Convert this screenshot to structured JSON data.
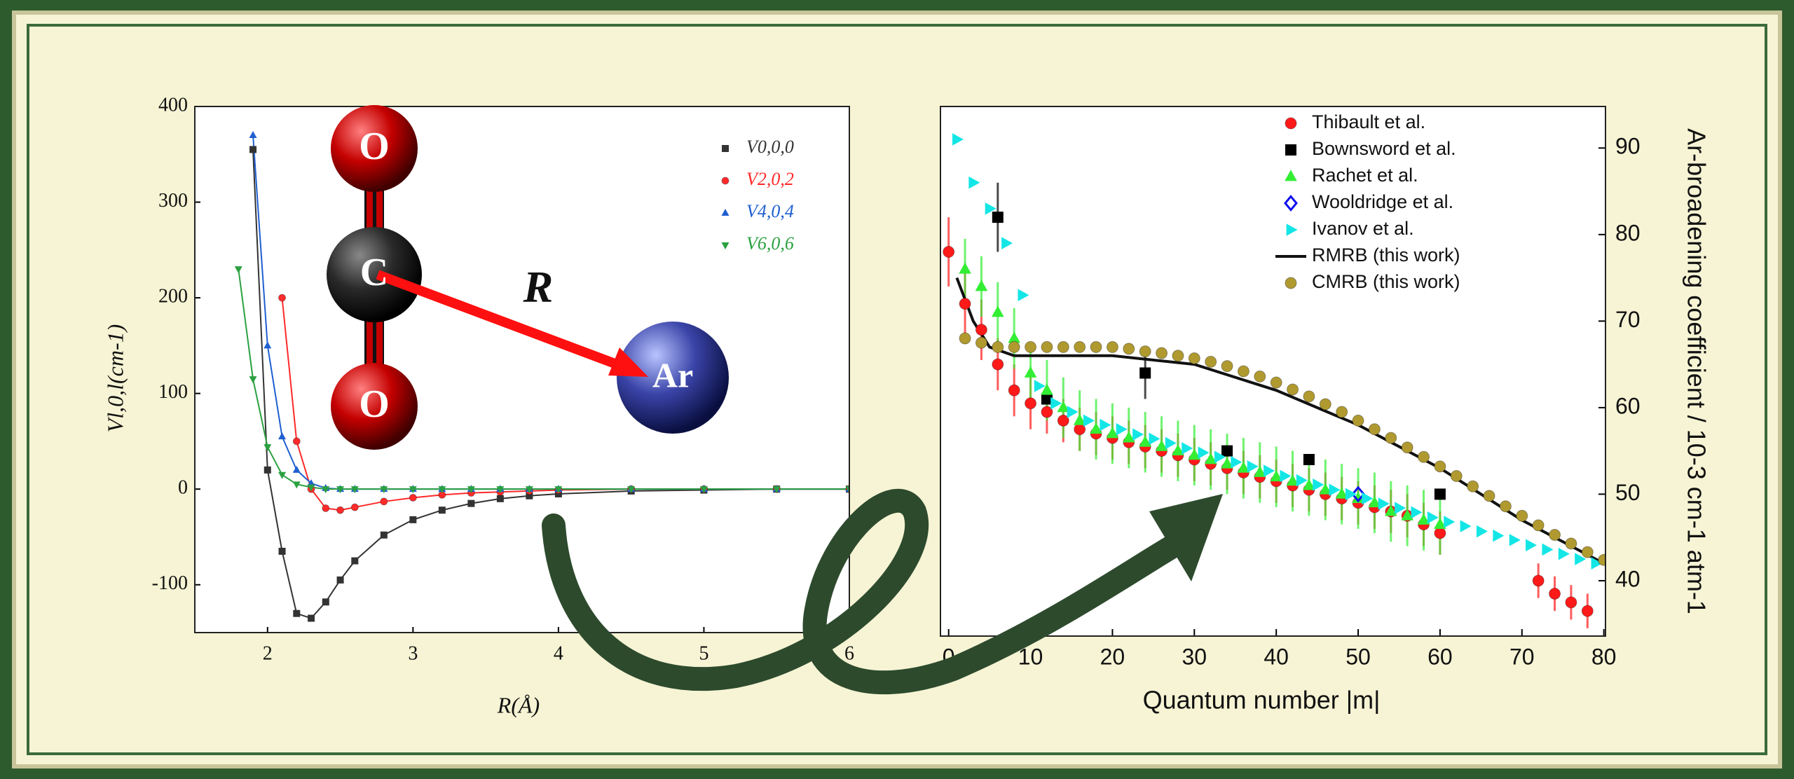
{
  "chart_data": [
    {
      "type": "line",
      "x_label": "R(Å)",
      "y_label": "Vl,0,l(cm-1)",
      "annotations": [
        "O",
        "C",
        "O",
        "R",
        "Ar"
      ],
      "x": [
        1.7,
        1.8,
        1.9,
        2.0,
        2.1,
        2.2,
        2.3,
        2.4,
        2.5,
        2.6,
        2.8,
        3.0,
        3.2,
        3.4,
        3.6,
        3.8,
        4.0,
        4.5,
        5.0,
        5.5,
        6.0
      ],
      "xlim": [
        1.5,
        6
      ],
      "ylim": [
        -150,
        400
      ],
      "xticks": [
        2,
        3,
        4,
        5,
        6
      ],
      "yticks": [
        -100,
        0,
        100,
        200,
        300,
        400
      ],
      "legend": "upper right",
      "yaxis_position": "left",
      "series": [
        {
          "name": "V0,0,0",
          "color": "#333333",
          "marker": "square",
          "values": [
            null,
            null,
            355,
            20,
            -65,
            -130,
            -135,
            -118,
            -95,
            -75,
            -48,
            -32,
            -22,
            -15,
            -10,
            -7,
            -5,
            -2,
            -1,
            0,
            0
          ]
        },
        {
          "name": "V2,0,2",
          "color": "#ff2a2a",
          "marker": "circle",
          "values": [
            null,
            null,
            null,
            null,
            200,
            50,
            0,
            -20,
            -22,
            -19,
            -13,
            -9,
            -6,
            -4,
            -3,
            -2,
            -1,
            0,
            0,
            0,
            0
          ]
        },
        {
          "name": "V4,0,4",
          "color": "#1f5fd0",
          "marker": "triangle",
          "values": [
            null,
            null,
            370,
            150,
            55,
            20,
            6,
            1,
            0,
            0,
            0,
            0,
            0,
            0,
            0,
            0,
            0,
            0,
            0,
            0,
            0
          ]
        },
        {
          "name": "V6,0,6",
          "color": "#2aa040",
          "marker": "triangle-down",
          "values": [
            null,
            230,
            115,
            44,
            15,
            5,
            2,
            0,
            0,
            0,
            0,
            0,
            0,
            0,
            0,
            0,
            0,
            0,
            0,
            0,
            0
          ]
        }
      ]
    },
    {
      "type": "scatter",
      "x_label": "Quantum number |m|",
      "y_label": "Ar-broadening coefficient / 10-3 cm-1 atm-1",
      "xlim": [
        -1,
        80.2
      ],
      "ylim": [
        33.6,
        94.8
      ],
      "xticks": [
        0,
        10,
        20,
        30,
        40,
        50,
        60,
        70,
        80
      ],
      "yticks": [
        40,
        50,
        60,
        70,
        80,
        90
      ],
      "legend": "upper right",
      "yaxis_position": "right",
      "series": [
        {
          "name": "Thibault et al.",
          "color": "#ff1a1a",
          "marker": "circle",
          "x": [
            0,
            2,
            4,
            6,
            8,
            10,
            12,
            14,
            16,
            18,
            20,
            22,
            24,
            26,
            28,
            30,
            32,
            34,
            36,
            38,
            40,
            42,
            44,
            46,
            48,
            50,
            52,
            54,
            56,
            58,
            60,
            72,
            74,
            76,
            78
          ],
          "values": [
            78,
            72,
            69,
            65,
            62,
            60.5,
            59.5,
            58.5,
            57.5,
            57,
            56.5,
            56,
            55.5,
            55,
            54.5,
            54,
            53.5,
            53,
            52.5,
            52,
            51.5,
            51,
            50.5,
            50,
            49.5,
            49,
            48.5,
            48,
            47.5,
            46.5,
            45.5,
            40,
            38.5,
            37.5,
            36.5
          ],
          "errors": [
            4,
            3.5,
            3.5,
            3,
            3,
            3,
            2.5,
            2.5,
            2.5,
            2.5,
            2.5,
            2.5,
            2.5,
            2.5,
            2.5,
            2.5,
            2.5,
            2.5,
            2.5,
            2.5,
            2.5,
            2.5,
            2.5,
            2.5,
            2.5,
            2.5,
            2.5,
            2.5,
            2.5,
            2.5,
            2.5,
            2,
            2,
            2,
            2
          ]
        },
        {
          "name": "Bownsword et al.",
          "color": "#000000",
          "marker": "square",
          "x": [
            6,
            12,
            24,
            34,
            44,
            60
          ],
          "values": [
            82,
            61,
            64,
            55,
            54,
            50
          ],
          "errors": [
            4,
            null,
            3,
            null,
            null,
            null
          ]
        },
        {
          "name": "Rachet et al.",
          "color": "#33ee33",
          "marker": "triangle",
          "x": [
            2,
            4,
            6,
            8,
            10,
            12,
            14,
            16,
            18,
            20,
            22,
            24,
            26,
            28,
            30,
            32,
            34,
            36,
            38,
            40,
            42,
            44,
            46,
            48,
            50,
            52,
            54,
            56,
            58,
            60
          ],
          "values": [
            76,
            74,
            71,
            68,
            64,
            62,
            60,
            58.5,
            57.5,
            57,
            56.5,
            56,
            55.5,
            55,
            54.5,
            54,
            53.5,
            53,
            52.5,
            52,
            51.5,
            51,
            50.5,
            50,
            49.5,
            49,
            48,
            47.5,
            47,
            46.5
          ],
          "errors": [
            3.5,
            3.5,
            3.5,
            3.5,
            3.5,
            3.5,
            3.5,
            3.5,
            3.5,
            3.5,
            3.5,
            3.5,
            3.5,
            3.5,
            3.5,
            3.5,
            3.5,
            3.5,
            3.5,
            3.5,
            3.5,
            3.5,
            3.5,
            3.5,
            3.5,
            3.5,
            3.5,
            3.5,
            3.5,
            3.5
          ]
        },
        {
          "name": "Wooldridge et al.",
          "color": "#1010ee",
          "marker": "diamond-open",
          "x": [
            50
          ],
          "values": [
            50
          ]
        },
        {
          "name": "Ivanov et al.",
          "color": "#14e6e6",
          "marker": "triangle-right",
          "x": [
            1,
            3,
            5,
            7,
            9,
            11,
            13,
            15,
            17,
            19,
            21,
            23,
            25,
            27,
            29,
            31,
            33,
            35,
            37,
            39,
            41,
            43,
            45,
            47,
            49,
            51,
            53,
            55,
            57,
            59,
            61,
            63,
            65,
            67,
            69,
            71,
            73,
            75,
            77,
            79
          ],
          "values": [
            91,
            86,
            83,
            79,
            73,
            62.5,
            60.5,
            59.5,
            58.5,
            58,
            57.5,
            56.9,
            56.4,
            55.9,
            55.3,
            54.8,
            54.3,
            53.7,
            53.2,
            52.7,
            52.1,
            51.6,
            51.1,
            50.5,
            50.0,
            49.5,
            48.9,
            48.4,
            47.9,
            47.3,
            46.8,
            46.3,
            45.7,
            45.2,
            44.7,
            44.1,
            43.6,
            43.1,
            42.5,
            42.0
          ]
        },
        {
          "name": "RMRB (this work)",
          "color": "#111111",
          "marker": "line",
          "x": [
            1,
            3,
            5,
            8,
            12,
            20,
            30,
            40,
            50,
            60,
            70,
            80
          ],
          "values": [
            75,
            70,
            67,
            66,
            66,
            66,
            65,
            62,
            58,
            53,
            47,
            42
          ]
        },
        {
          "name": "CMRB (this work)",
          "color": "#b09a30",
          "marker": "circle",
          "x": [
            2,
            4,
            6,
            8,
            10,
            12,
            14,
            16,
            18,
            20,
            22,
            24,
            26,
            28,
            30,
            32,
            34,
            36,
            38,
            40,
            42,
            44,
            46,
            48,
            50,
            52,
            54,
            56,
            58,
            60,
            62,
            64,
            66,
            68,
            70,
            72,
            74,
            76,
            78,
            80
          ],
          "values": [
            68,
            67.5,
            67,
            67,
            67,
            67,
            67,
            67,
            67,
            67,
            66.8,
            66.5,
            66.3,
            66,
            65.7,
            65.3,
            64.8,
            64.2,
            63.6,
            62.9,
            62.1,
            61.3,
            60.4,
            59.5,
            58.5,
            57.5,
            56.5,
            55.4,
            54.3,
            53.2,
            52.1,
            50.9,
            49.8,
            48.6,
            47.5,
            46.4,
            45.3,
            44.3,
            43.3,
            42.4
          ]
        }
      ]
    }
  ]
}
